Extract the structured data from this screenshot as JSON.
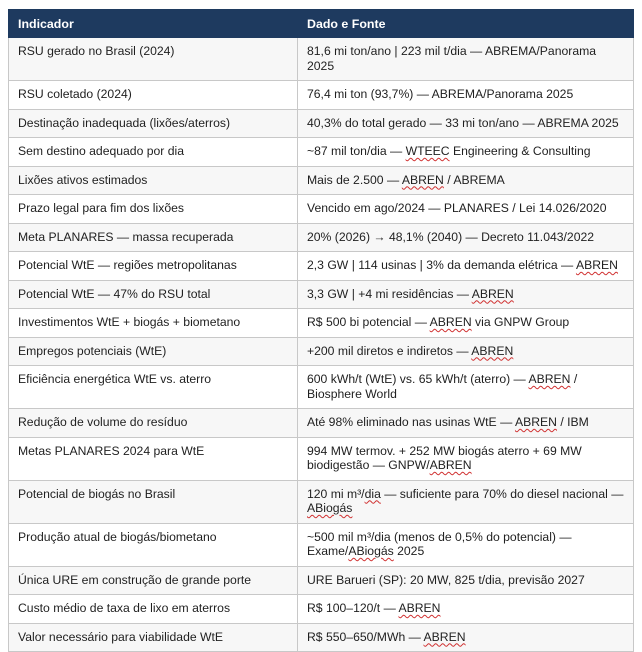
{
  "table": {
    "headers": [
      "Indicador",
      "Dado e Fonte"
    ],
    "rows": [
      {
        "indicator": "RSU gerado no Brasil (2024)",
        "value": "81,6 mi ton/ano | 223 mil t/dia — ABREMA/Panorama 2025"
      },
      {
        "indicator": "RSU coletado (2024)",
        "value": "76,4 mi ton (93,7%) — ABREMA/Panorama 2025"
      },
      {
        "indicator": "Destinação inadequada (lixões/aterros)",
        "value": "40,3% do total gerado — 33 mi ton/ano — ABREMA 2025"
      },
      {
        "indicator": "Sem destino adequado por dia",
        "value": "~87 mil ton/dia — WTEEC Engineering & Consulting"
      },
      {
        "indicator": "Lixões ativos estimados",
        "value": "Mais de 2.500 — ABREN / ABREMA"
      },
      {
        "indicator": "Prazo legal para fim dos lixões",
        "value": "Vencido em ago/2024 — PLANARES / Lei 14.026/2020"
      },
      {
        "indicator": "Meta PLANARES — massa recuperada",
        "value": "20% (2026) → 48,1% (2040) — Decreto 11.043/2022"
      },
      {
        "indicator": "Potencial WtE — regiões metropolitanas",
        "value": "2,3 GW | 114 usinas | 3% da demanda elétrica — ABREN"
      },
      {
        "indicator": "Potencial WtE — 47% do RSU total",
        "value": "3,3 GW | +4 mi residências — ABREN"
      },
      {
        "indicator": "Investimentos WtE + biogás + biometano",
        "value": "R$ 500 bi potencial — ABREN via GNPW Group"
      },
      {
        "indicator": "Empregos potenciais (WtE)",
        "value": "+200 mil diretos e indiretos — ABREN"
      },
      {
        "indicator": "Eficiência energética WtE vs. aterro",
        "value": "600 kWh/t (WtE) vs. 65 kWh/t (aterro) — ABREN / Biosphere World"
      },
      {
        "indicator": "Redução de volume do resíduo",
        "value": "Até 98% eliminado nas usinas WtE — ABREN / IBM"
      },
      {
        "indicator": "Metas PLANARES 2024 para WtE",
        "value": "994 MW termov. + 252 MW biogás aterro + 69 MW biodigestão — GNPW/ABREN"
      },
      {
        "indicator": "Potencial de biogás no Brasil",
        "value": "120 mi m³/dia — suficiente para 70% do diesel nacional — ABiogás"
      },
      {
        "indicator": "Produção atual de biogás/biometano",
        "value": "~500 mil m³/dia (menos de 0,5% do potencial) — Exame/ABiogás 2025"
      },
      {
        "indicator": "Única URE em construção de grande porte",
        "value": "URE Barueri (SP): 20 MW, 825 t/dia, previsão 2027"
      },
      {
        "indicator": "Custo médio de taxa de lixo em aterros",
        "value": "R$ 100–120/t — ABREN"
      },
      {
        "indicator": "Valor necessário para viabilidade WtE",
        "value": "R$ 550–650/MWh — ABREN"
      }
    ]
  }
}
